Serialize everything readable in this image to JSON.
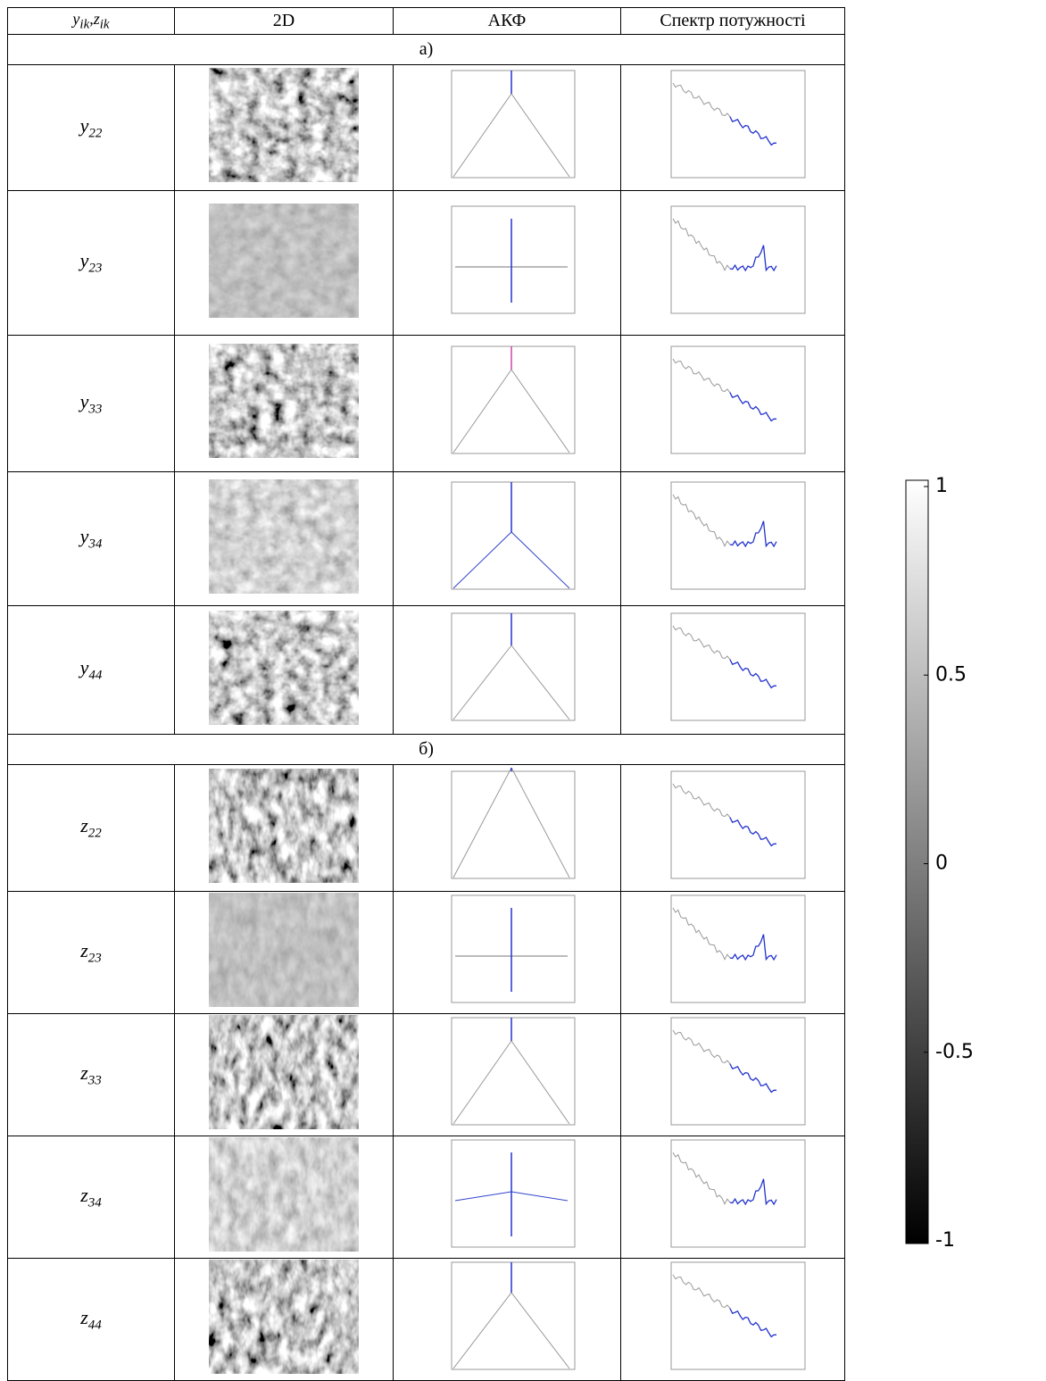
{
  "header": {
    "col0": {
      "parts": [
        {
          "text": "y",
          "sub": "ik"
        },
        {
          "text": "z",
          "sub": "ik"
        }
      ],
      "separator": ","
    },
    "col1": "2D",
    "col2": "АКФ",
    "col3": "Спектр потужності"
  },
  "sections": [
    {
      "label": "а)",
      "rows": [
        {
          "symbol": "y",
          "index": "22"
        },
        {
          "symbol": "y",
          "index": "23"
        },
        {
          "symbol": "y",
          "index": "33"
        },
        {
          "symbol": "y",
          "index": "34"
        },
        {
          "symbol": "y",
          "index": "44"
        }
      ]
    },
    {
      "label": "б)",
      "rows": [
        {
          "symbol": "z",
          "index": "22"
        },
        {
          "symbol": "z",
          "index": "23"
        },
        {
          "symbol": "z",
          "index": "33"
        },
        {
          "symbol": "z",
          "index": "34"
        },
        {
          "symbol": "z",
          "index": "44"
        }
      ]
    }
  ],
  "colorbar": {
    "range": [
      -1,
      1
    ],
    "ticks": [
      1,
      0.5,
      0,
      -0.5,
      -1
    ]
  }
}
